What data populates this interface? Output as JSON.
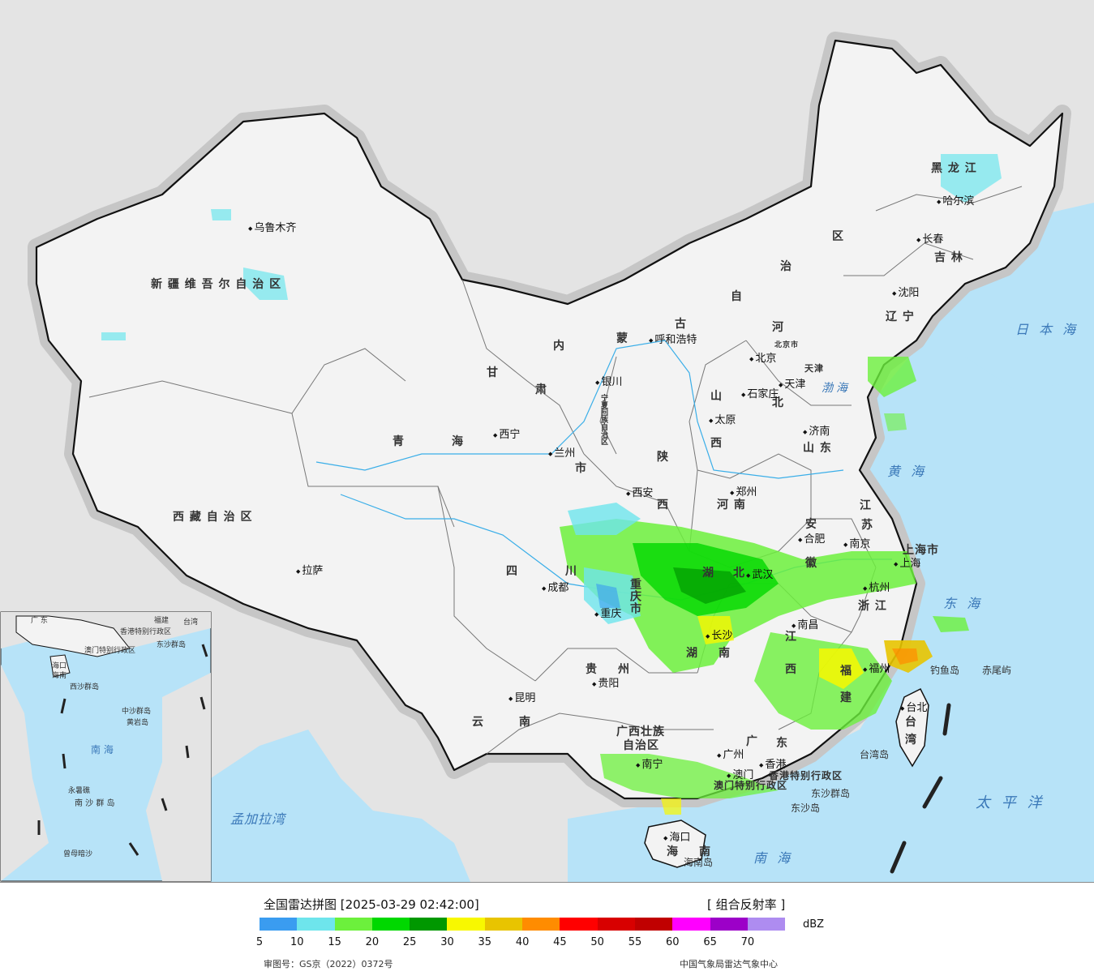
{
  "map": {
    "provinces": [
      "新疆维吾尔自治区",
      "西藏自治区",
      "青海",
      "甘肃",
      "内蒙古自治区",
      "四川",
      "云南",
      "贵州",
      "广西壮族自治区",
      "广东",
      "湖南",
      "湖北",
      "江西",
      "福建",
      "浙江",
      "江苏",
      "安徽",
      "河南",
      "山东",
      "河北",
      "山西",
      "陕西",
      "宁夏回族自治区",
      "黑龙江",
      "吉林",
      "辽宁",
      "重庆市",
      "上海市",
      "台湾",
      "海南",
      "香港特别行政区",
      "澳门特别行政区"
    ],
    "label_parts": {
      "xinjiang": "新 疆 维 吾 尔 自 治 区",
      "xizang": "西 藏 自 治 区",
      "qinghai_a": "青",
      "qinghai_b": "海",
      "gansu_a": "甘",
      "gansu_b": "肃",
      "nmg_a": "内",
      "nmg_b": "蒙",
      "nmg_c": "古",
      "nmg_d": "自",
      "nmg_e": "治",
      "nmg_f": "区",
      "sichuan_a": "四",
      "sichuan_b": "川",
      "yunnan_a": "云",
      "yunnan_b": "南",
      "guizhou_a": "贵",
      "guizhou_b": "州",
      "guangxi_a": "广西壮族",
      "guangxi_b": "自治区",
      "guangdong_a": "广",
      "guangdong_b": "东",
      "hunan_a": "湖",
      "hunan_b": "南",
      "hubei_a": "湖",
      "hubei_b": "北",
      "jiangxi_a": "江",
      "jiangxi_b": "西",
      "fujian_a": "福",
      "fujian_b": "建",
      "zhejiang": "浙 江",
      "jiangsu_a": "江",
      "jiangsu_b": "苏",
      "anhui_a": "安",
      "anhui_b": "徽",
      "henan": "河 南",
      "shandong": "山 东",
      "hebei_a": "河",
      "hebei_b": "北",
      "shanxi_a": "山",
      "shanxi_b": "西",
      "shaanxi_a": "陕",
      "shaanxi_b": "西",
      "ningxia": "宁夏回族自治区",
      "heilongjiang": "黑 龙 江",
      "jilin": "吉 林",
      "liaoning": "辽 宁",
      "chongqing": "重庆市",
      "shanghai": "上海市",
      "taiwan_a": "台",
      "taiwan_b": "湾",
      "hainan_a": "海",
      "hainan_b": "南",
      "hk": "香港特别行政区",
      "macau": "澳门特别行政区",
      "gansu_c": "市",
      "beijing_city": "北京市",
      "tianjin_city": "天津"
    },
    "cities": [
      {
        "key": "urumqi",
        "name": "乌鲁木齐"
      },
      {
        "key": "lhasa",
        "name": "拉萨"
      },
      {
        "key": "xining",
        "name": "西宁"
      },
      {
        "key": "lanzhou",
        "name": "兰州"
      },
      {
        "key": "yinchuan",
        "name": "银川"
      },
      {
        "key": "hohhot",
        "name": "呼和浩特"
      },
      {
        "key": "beijing",
        "name": "北京"
      },
      {
        "key": "tianjin",
        "name": "天津"
      },
      {
        "key": "shijiazhuang",
        "name": "石家庄"
      },
      {
        "key": "taiyuan",
        "name": "太原"
      },
      {
        "key": "jinan",
        "name": "济南"
      },
      {
        "key": "zhengzhou",
        "name": "郑州"
      },
      {
        "key": "xian",
        "name": "西安"
      },
      {
        "key": "chengdu",
        "name": "成都"
      },
      {
        "key": "chongqing",
        "name": "重庆"
      },
      {
        "key": "guiyang",
        "name": "贵阳"
      },
      {
        "key": "kunming",
        "name": "昆明"
      },
      {
        "key": "nanning",
        "name": "南宁"
      },
      {
        "key": "guangzhou",
        "name": "广州"
      },
      {
        "key": "hongkong",
        "name": "香港"
      },
      {
        "key": "macau",
        "name": "澳门"
      },
      {
        "key": "haikou",
        "name": "海口"
      },
      {
        "key": "changsha",
        "name": "长沙"
      },
      {
        "key": "wuhan",
        "name": "武汉"
      },
      {
        "key": "nanchang",
        "name": "南昌"
      },
      {
        "key": "fuzhou",
        "name": "福州"
      },
      {
        "key": "hangzhou",
        "name": "杭州"
      },
      {
        "key": "shanghai",
        "name": "上海"
      },
      {
        "key": "nanjing",
        "name": "南京"
      },
      {
        "key": "hefei",
        "name": "合肥"
      },
      {
        "key": "shenyang",
        "name": "沈阳"
      },
      {
        "key": "changchun",
        "name": "长春"
      },
      {
        "key": "harbin",
        "name": "哈尔滨"
      },
      {
        "key": "taibei",
        "name": "台北"
      }
    ],
    "seas": {
      "bohai": "渤海",
      "huanghai": "黄 海",
      "donghai": "东 海",
      "nanhai": "南 海",
      "taipingyang": "太 平 洋",
      "ribenhai": "日 本 海",
      "mengjialawan": "孟加拉湾"
    },
    "islands": {
      "diaoyudao": "钓鱼岛",
      "chiweiyu": "赤尾屿",
      "taiwandao": "台湾岛",
      "dongshaqundao": "东沙群岛",
      "dongshadao": "东沙岛",
      "hainandao": "海南岛"
    },
    "inset": {
      "labels": {
        "nanhai": "南 海",
        "zhongshaqundao": "中沙群岛",
        "huangyandao": "黄岩岛",
        "nanshaqundao": "南 沙 群 岛",
        "yongshujiao": "永暑礁",
        "zengmuansha": "曾母暗沙",
        "xishaqundao": "西沙群岛",
        "haikou": "海口",
        "dongshaqundao": "东沙群岛",
        "hk": "香港特别行政区",
        "macau": "澳门特别行政区",
        "taiwan": "台湾",
        "guangdong": "广 东",
        "fujian": "福建",
        "hainan": "海南"
      }
    },
    "colors": {
      "land": "#f3f3f3",
      "sea": "#b7e3f8",
      "foreign": "#e4e4e4",
      "border": "#111111",
      "halo": "#c8c8c8"
    }
  },
  "legend": {
    "title": "全国雷达拼图 [2025-03-29 02:42:00]",
    "product": "[ 组合反射率 ]",
    "unit": "dBZ",
    "ticks": [
      "5",
      "10",
      "15",
      "20",
      "25",
      "30",
      "35",
      "40",
      "45",
      "50",
      "55",
      "60",
      "65",
      "70"
    ],
    "colors": [
      "#3a9cf0",
      "#6ee5ec",
      "#6cf03c",
      "#00d800",
      "#009800",
      "#f8f800",
      "#e8c400",
      "#ff8c00",
      "#ff0000",
      "#d80000",
      "#c00000",
      "#ff00ff",
      "#9c00c8",
      "#ae8cf0"
    ],
    "review_number": "审图号：GS京（2022）0372号",
    "source": "中国气象局雷达气象中心"
  }
}
